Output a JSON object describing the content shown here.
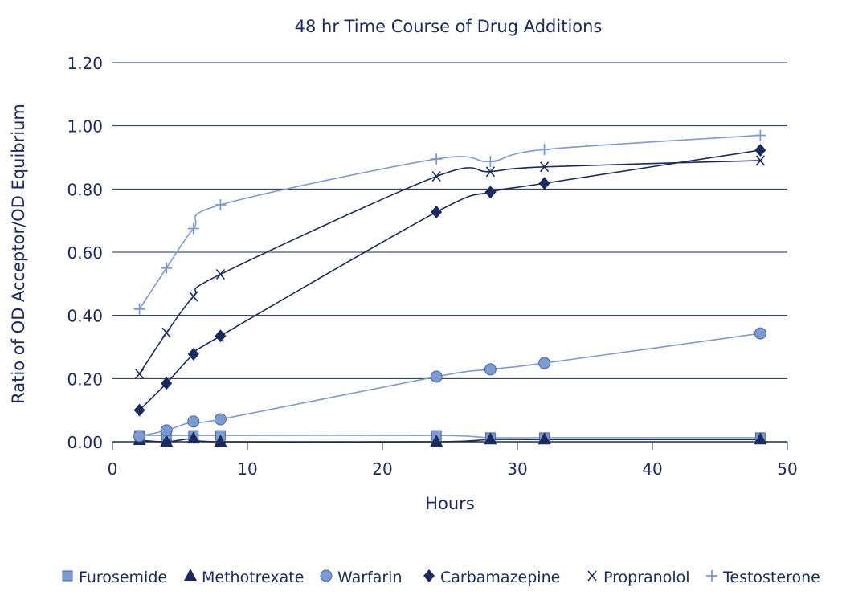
{
  "chart_data": {
    "type": "line",
    "title": "48 hr Time Course of Drug Additions",
    "xlabel": "Hours",
    "ylabel": "Ratio of OD Acceptor/OD Equibrium",
    "xlim": [
      0,
      50
    ],
    "ylim": [
      0,
      1.2
    ],
    "xticks": [
      0,
      10,
      20,
      30,
      40,
      50
    ],
    "xtick_labels": [
      "0",
      "10",
      "20",
      "30",
      "40",
      "50"
    ],
    "yticks": [
      0,
      0.2,
      0.4,
      0.6,
      0.8,
      1.0,
      1.2
    ],
    "ytick_labels": [
      "0.00",
      "0.20",
      "0.40",
      "0.60",
      "0.80",
      "1.00",
      "1.20"
    ],
    "grid": "horizontal",
    "legend_position": "bottom",
    "x": [
      2,
      4,
      6,
      8,
      24,
      28,
      32,
      48
    ],
    "series": [
      {
        "name": "Furosemide",
        "marker": "square",
        "color": "#7b9bd2",
        "values": [
          0.02,
          0.02,
          0.02,
          0.02,
          0.02,
          0.013,
          0.013,
          0.013
        ]
      },
      {
        "name": "Methotrexate",
        "marker": "triangle",
        "color": "#1b2a5c",
        "values": [
          0.005,
          0.0,
          0.01,
          0.0,
          0.0,
          0.007,
          0.007,
          0.007
        ]
      },
      {
        "name": "Warfarin",
        "marker": "circle",
        "color": "#7b9bd2",
        "values": [
          0.018,
          0.036,
          0.064,
          0.071,
          0.206,
          0.229,
          0.249,
          0.343
        ]
      },
      {
        "name": "Carbamazepine",
        "marker": "diamond",
        "color": "#1b2a5c",
        "values": [
          0.1,
          0.185,
          0.277,
          0.335,
          0.727,
          0.79,
          0.818,
          0.923
        ]
      },
      {
        "name": "Propranolol",
        "marker": "x",
        "color": "#1b2a5c",
        "values": [
          0.215,
          0.345,
          0.46,
          0.53,
          0.84,
          0.855,
          0.87,
          0.89
        ]
      },
      {
        "name": "Testosterone",
        "marker": "plus",
        "color": "#7b9bd2",
        "values": [
          0.42,
          0.55,
          0.675,
          0.75,
          0.895,
          0.887,
          0.925,
          0.97
        ]
      }
    ]
  }
}
